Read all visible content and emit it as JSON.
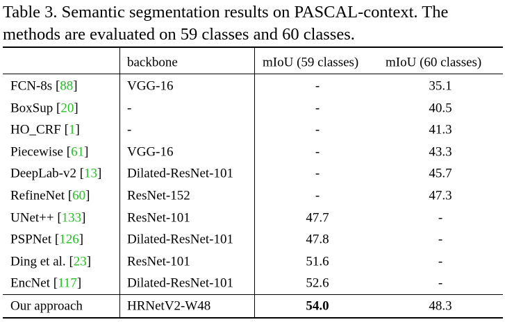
{
  "caption": [
    "Table 3. Semantic segmentation results on PASCAL-context. The",
    "methods are evaluated on 59 classes and 60 classes."
  ],
  "table": {
    "header": [
      "backbone",
      "mIoU (59 classes)",
      "mIoU (60 classes)"
    ],
    "rows": [
      {
        "method": "FCN-8s",
        "ref": "[88]",
        "backbone": "VGG-16",
        "miou59": "-",
        "miou60": "35.1"
      },
      {
        "method": "BoxSup",
        "ref": "[20]",
        "backbone": "-",
        "miou59": "-",
        "miou60": "40.5"
      },
      {
        "method": "HO_CRF",
        "ref": "[1]",
        "backbone": "-",
        "miou59": "-",
        "miou60": "41.3"
      },
      {
        "method": "Piecewise",
        "ref": "[61]",
        "backbone": "VGG-16",
        "miou59": "-",
        "miou60": "43.3"
      },
      {
        "method": "DeepLab-v2",
        "ref": "[13]",
        "backbone": "Dilated-ResNet-101",
        "miou59": "-",
        "miou60": "45.7"
      },
      {
        "method": "RefineNet",
        "ref": "[60]",
        "backbone": "ResNet-152",
        "miou59": "-",
        "miou60": "47.3"
      },
      {
        "method": "UNet++",
        "ref": "[133]",
        "backbone": "ResNet-101",
        "miou59": "47.7",
        "miou60": "-"
      },
      {
        "method": "PSPNet",
        "ref": "[126]",
        "backbone": "Dilated-ResNet-101",
        "miou59": "47.8",
        "miou60": "-"
      },
      {
        "method": "Ding et al.",
        "ref": "[23]",
        "backbone": "ResNet-101",
        "miou59": "51.6",
        "miou60": "-"
      },
      {
        "method": "EncNet",
        "ref": "[117]",
        "backbone": "Dilated-ResNet-101",
        "miou59": "52.6",
        "miou60": "-"
      },
      {
        "method": "Our approach",
        "backbone": "HRNetV2-W48",
        "miou59": "54.0",
        "miou60": "48.3"
      }
    ],
    "bold": [
      "miou59.10"
    ]
  }
}
